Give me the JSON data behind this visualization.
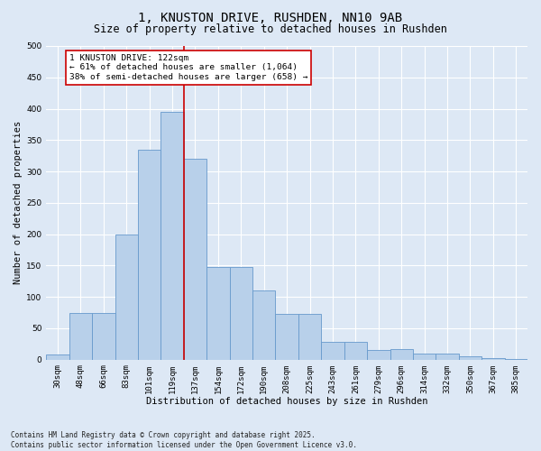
{
  "title": "1, KNUSTON DRIVE, RUSHDEN, NN10 9AB",
  "subtitle": "Size of property relative to detached houses in Rushden",
  "xlabel": "Distribution of detached houses by size in Rushden",
  "ylabel": "Number of detached properties",
  "categories": [
    "30sqm",
    "48sqm",
    "66sqm",
    "83sqm",
    "101sqm",
    "119sqm",
    "137sqm",
    "154sqm",
    "172sqm",
    "190sqm",
    "208sqm",
    "225sqm",
    "243sqm",
    "261sqm",
    "279sqm",
    "296sqm",
    "314sqm",
    "332sqm",
    "350sqm",
    "367sqm",
    "385sqm"
  ],
  "values": [
    8,
    75,
    75,
    200,
    335,
    395,
    320,
    148,
    148,
    110,
    73,
    73,
    28,
    28,
    15,
    17,
    10,
    10,
    5,
    2,
    1
  ],
  "bar_color": "#b8d0ea",
  "bar_edge_color": "#6699cc",
  "background_color": "#dde8f5",
  "grid_color": "#ffffff",
  "vline_x": 5.5,
  "vline_color": "#cc0000",
  "annotation_text": "1 KNUSTON DRIVE: 122sqm\n← 61% of detached houses are smaller (1,064)\n38% of semi-detached houses are larger (658) →",
  "annotation_box_color": "#ffffff",
  "annotation_box_edge": "#cc0000",
  "footer": "Contains HM Land Registry data © Crown copyright and database right 2025.\nContains public sector information licensed under the Open Government Licence v3.0.",
  "ylim": [
    0,
    500
  ],
  "yticks": [
    0,
    50,
    100,
    150,
    200,
    250,
    300,
    350,
    400,
    450,
    500
  ],
  "title_fontsize": 10,
  "subtitle_fontsize": 8.5,
  "label_fontsize": 7.5,
  "tick_fontsize": 6.5,
  "annotation_fontsize": 6.8,
  "footer_fontsize": 5.5
}
